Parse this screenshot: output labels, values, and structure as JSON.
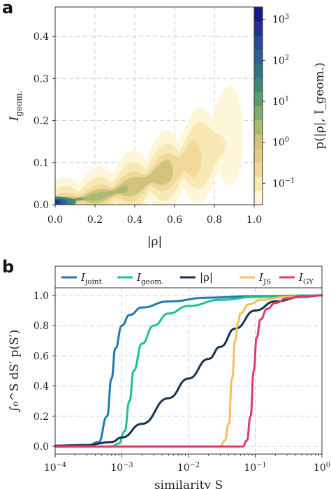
{
  "figure": {
    "panel_a_letter": "a",
    "panel_b_letter": "b"
  },
  "chart_data": [
    {
      "type": "heatmap",
      "panel": "a",
      "xlabel": "|ρ|",
      "ylabel": "I_geom.",
      "xlim": [
        0.0,
        1.0
      ],
      "ylim": [
        0.0,
        0.47
      ],
      "xticks": [
        "0.0",
        "0.2",
        "0.4",
        "0.6",
        "0.8",
        "1.0"
      ],
      "yticks": [
        "0.0",
        "0.1",
        "0.2",
        "0.3",
        "0.4"
      ],
      "grid": true,
      "colorbar": {
        "label": "p(|ρ|, I_geom.)",
        "scale": "log",
        "range": [
          0.03,
          2000
        ],
        "tick_labels": [
          "10^3",
          "10^2",
          "10^1",
          "10^0",
          "10^-1"
        ],
        "tick_values": [
          1000,
          100,
          10,
          1,
          0.1
        ],
        "colors": [
          "#fdf6d8",
          "#f8e8b4",
          "#f1d89a",
          "#e6cc88",
          "#cfc47a",
          "#a8ba6e",
          "#7eaa6a",
          "#5b9a6e",
          "#3f8877",
          "#2f7483",
          "#2a5f8f",
          "#274a98",
          "#22309a",
          "#1a1a86"
        ]
      },
      "density_ridge": {
        "x": [
          0.0,
          0.1,
          0.2,
          0.3,
          0.4,
          0.5,
          0.6,
          0.7,
          0.8,
          0.85
        ],
        "y": [
          0.005,
          0.012,
          0.018,
          0.03,
          0.045,
          0.065,
          0.088,
          0.11,
          0.14,
          0.165
        ],
        "log_density": [
          3.0,
          1.2,
          0.9,
          0.6,
          0.4,
          0.1,
          -0.2,
          -0.6,
          -1.0,
          -1.3
        ]
      }
    },
    {
      "type": "line",
      "panel": "b",
      "xlabel": "similarity S",
      "ylabel": "∫₀^S dS′ p(S′)",
      "xscale": "log",
      "xlim": [
        0.0001,
        1
      ],
      "ylim": [
        -0.05,
        1.05
      ],
      "xticks": [
        "10^-4",
        "10^-3",
        "10^-2",
        "10^-1",
        "10^0"
      ],
      "yticks": [
        "0.0",
        "0.2",
        "0.4",
        "0.6",
        "0.8",
        "1.0"
      ],
      "grid": true,
      "legend": "top, outside",
      "series": [
        {
          "name": "I_joint",
          "color": "#1f7ab0",
          "x": [
            0.0001,
            0.0003,
            0.00045,
            0.0006,
            0.0007,
            0.0008,
            0.001,
            0.0013,
            0.002,
            0.005,
            0.02,
            0.1,
            1
          ],
          "y": [
            0.0,
            0.003,
            0.03,
            0.2,
            0.45,
            0.65,
            0.8,
            0.87,
            0.92,
            0.96,
            0.985,
            0.995,
            1.0
          ]
        },
        {
          "name": "I_geom.",
          "color": "#19c48e",
          "x": [
            0.0001,
            0.0007,
            0.0009,
            0.0011,
            0.0013,
            0.0015,
            0.002,
            0.003,
            0.005,
            0.01,
            0.03,
            0.1,
            1
          ],
          "y": [
            0.0,
            0.0,
            0.02,
            0.1,
            0.3,
            0.5,
            0.68,
            0.8,
            0.88,
            0.93,
            0.97,
            0.99,
            1.0
          ]
        },
        {
          "name": "|ρ|",
          "color": "#14324f",
          "x": [
            0.0001,
            0.0003,
            0.0007,
            0.001,
            0.002,
            0.005,
            0.01,
            0.02,
            0.03,
            0.05,
            0.1,
            0.2,
            0.5,
            1
          ],
          "y": [
            0.005,
            0.01,
            0.03,
            0.06,
            0.15,
            0.32,
            0.45,
            0.58,
            0.66,
            0.78,
            0.9,
            0.96,
            0.99,
            1.0
          ]
        },
        {
          "name": "I_JS",
          "color": "#f5bf5a",
          "x": [
            0.0001,
            0.03,
            0.035,
            0.04,
            0.045,
            0.05,
            0.055,
            0.06,
            0.08,
            0.12,
            0.3,
            1
          ],
          "y": [
            0.0,
            0.0,
            0.04,
            0.15,
            0.45,
            0.7,
            0.82,
            0.88,
            0.94,
            0.97,
            0.99,
            1.0
          ]
        },
        {
          "name": "I_GY",
          "color": "#dd3b6e",
          "x": [
            0.0001,
            0.065,
            0.075,
            0.085,
            0.095,
            0.105,
            0.12,
            0.15,
            0.2,
            0.3,
            0.5,
            1
          ],
          "y": [
            0.0,
            0.0,
            0.04,
            0.2,
            0.5,
            0.72,
            0.84,
            0.91,
            0.95,
            0.98,
            0.995,
            1.0
          ]
        }
      ]
    }
  ]
}
